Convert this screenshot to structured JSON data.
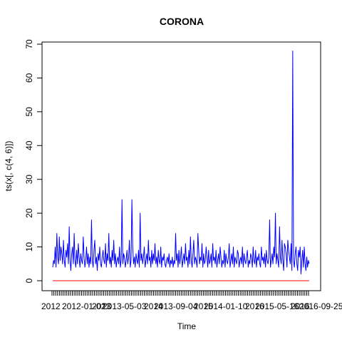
{
  "chart_data": {
    "type": "line",
    "title": "CORONA",
    "xlabel": "Time",
    "ylabel": "ts(x[, c(4, 6)])",
    "ylim": [
      0,
      70
    ],
    "y_ticks": [
      "0",
      "10",
      "20",
      "30",
      "40",
      "50",
      "60",
      "70"
    ],
    "x_tick_labels": [
      "2012-01-02",
      "2013-05-03",
      "2013-09-04",
      "2014-01-10",
      "2015-05-16",
      "2016-09-25",
      "2012",
      "2013",
      "2014",
      "2015",
      "2016",
      "2016"
    ],
    "series": [
      {
        "name": "blue-series",
        "color": "#0000ff",
        "values": [
          4,
          6,
          5,
          10,
          4,
          14,
          7,
          5,
          13,
          6,
          10,
          8,
          5,
          12,
          6,
          4,
          9,
          7,
          11,
          5,
          16,
          6,
          3,
          8,
          10,
          5,
          14,
          6,
          4,
          9,
          5,
          11,
          7,
          4,
          8,
          6,
          5,
          13,
          7,
          4,
          6,
          10,
          5,
          8,
          4,
          7,
          5,
          18,
          6,
          4,
          9,
          12,
          5,
          7,
          3,
          8,
          6,
          10,
          5,
          4,
          7,
          9,
          6,
          5,
          11,
          4,
          8,
          6,
          14,
          5,
          7,
          4,
          9,
          6,
          12,
          5,
          8,
          4,
          6,
          7,
          5,
          10,
          4,
          6,
          24,
          5,
          8,
          7,
          4,
          6,
          9,
          5,
          7,
          12,
          4,
          6,
          24,
          10,
          5,
          7,
          4,
          8,
          6,
          5,
          9,
          4,
          20,
          6,
          8,
          5,
          7,
          10,
          4,
          6,
          8,
          5,
          12,
          6,
          7,
          4,
          9,
          5,
          8,
          6,
          11,
          5,
          7,
          4,
          9,
          6,
          5,
          10,
          4,
          7,
          6,
          8,
          5,
          4,
          6,
          7,
          5,
          8,
          4,
          6,
          5,
          7,
          4,
          6,
          5,
          14,
          6,
          8,
          4,
          9,
          5,
          7,
          10,
          4,
          6,
          8,
          5,
          11,
          6,
          7,
          4,
          9,
          5,
          13,
          6,
          4,
          8,
          12,
          5,
          7,
          6,
          4,
          14,
          9,
          5,
          7,
          6,
          11,
          4,
          8,
          5,
          6,
          10,
          7,
          4,
          9,
          5,
          6,
          8,
          4,
          11,
          6,
          7,
          5,
          9,
          4,
          6,
          8,
          5,
          10,
          7,
          4,
          6,
          5,
          9,
          4,
          8,
          6,
          5,
          7,
          11,
          4,
          6,
          8,
          5,
          10,
          4,
          7,
          6,
          5,
          9,
          8,
          4,
          6,
          7,
          5,
          10,
          4,
          8,
          6,
          5,
          7,
          9,
          4,
          6,
          5,
          8,
          7,
          4,
          10,
          6,
          5,
          9,
          4,
          7,
          6,
          8,
          5,
          4,
          10,
          6,
          7,
          5,
          8,
          4,
          9,
          6,
          5,
          7,
          18,
          4,
          6,
          8,
          5,
          10,
          7,
          20,
          5,
          8,
          6,
          4,
          16,
          7,
          5,
          12,
          6,
          3,
          11,
          10,
          8,
          4,
          12,
          9,
          7,
          5,
          11,
          3,
          68,
          6,
          4,
          8,
          10,
          5,
          3,
          9,
          7,
          10,
          2,
          6,
          9,
          4,
          10,
          5,
          3,
          7,
          4,
          6,
          5
        ]
      },
      {
        "name": "red-series",
        "color": "#ff0000",
        "values": [
          0,
          0
        ]
      }
    ],
    "grid": false,
    "legend": "none"
  }
}
